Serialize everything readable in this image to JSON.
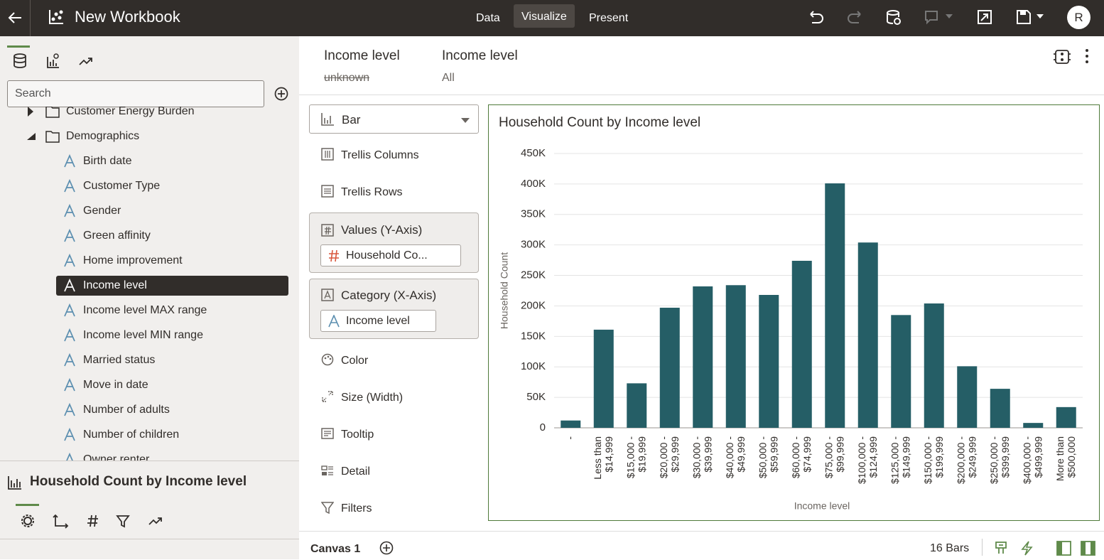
{
  "header": {
    "title": "New Workbook",
    "tabs": [
      "Data",
      "Visualize",
      "Present"
    ],
    "user_initial": "R"
  },
  "data_panel": {
    "search_placeholder": "Search",
    "folders": [
      "Customer Energy Burden",
      "Demographics"
    ],
    "attributes": [
      "Birth date",
      "Customer Type",
      "Gender",
      "Green affinity",
      "Home improvement",
      "Income level",
      "Income level MAX range",
      "Income level MIN range",
      "Married status",
      "Move in date",
      "Number of adults",
      "Number of children",
      "Owner renter"
    ]
  },
  "properties": {
    "title": "Household Count by Income level"
  },
  "filters": [
    {
      "label": "Income level",
      "value": "unknown"
    },
    {
      "label": "Income level",
      "value": "All"
    }
  ],
  "grammar": {
    "chart_type": "Bar",
    "trellis_columns": "Trellis Columns",
    "trellis_rows": "Trellis Rows",
    "values": {
      "label": "Values (Y-Axis)",
      "item": "Household Co..."
    },
    "category": {
      "label": "Category (X-Axis)",
      "item": "Income level"
    },
    "others": [
      "Color",
      "Size (Width)",
      "Tooltip",
      "Detail",
      "Filters"
    ]
  },
  "footer": {
    "canvas": "Canvas 1",
    "status": "16 Bars"
  },
  "chart_data": {
    "type": "bar",
    "title": "Household Count by Income level",
    "y_label": "Household Count",
    "x_label": "Income level",
    "categories": [
      "-",
      "Less than $14,999",
      "$15,000 - $19,999",
      "$20,000 - $29,999",
      "$30,000 - $39,999",
      "$40,000 - $49,999",
      "$50,000 - $59,999",
      "$60,000 - $74,999",
      "$75,000 - $99,999",
      "$100,000 - $124,999",
      "$125,000 - $149,999",
      "$150,000 - $199,999",
      "$200,000 - $249,999",
      "$250,000 - $399,999",
      "$400,000 - $499,999",
      "More than $500,000"
    ],
    "values": [
      12000,
      161000,
      73000,
      197000,
      232000,
      234000,
      218000,
      274000,
      401000,
      304000,
      185000,
      204000,
      101000,
      64000,
      8000,
      34000
    ],
    "color": "#255e66",
    "ylim": [
      0,
      450000
    ],
    "yticks": [
      0,
      {
        "value": 50000,
        "label": "50K"
      },
      {
        "value": 100000,
        "label": "100K"
      },
      {
        "value": 150000,
        "label": "150K"
      },
      {
        "value": 200000,
        "label": "200K"
      },
      {
        "value": 250000,
        "label": "250K"
      },
      {
        "value": 300000,
        "label": "300K"
      },
      {
        "value": 350000,
        "label": "350K"
      },
      {
        "value": 400000,
        "label": "400K"
      },
      {
        "value": 450000,
        "label": "450K"
      }
    ],
    "grid": true
  }
}
